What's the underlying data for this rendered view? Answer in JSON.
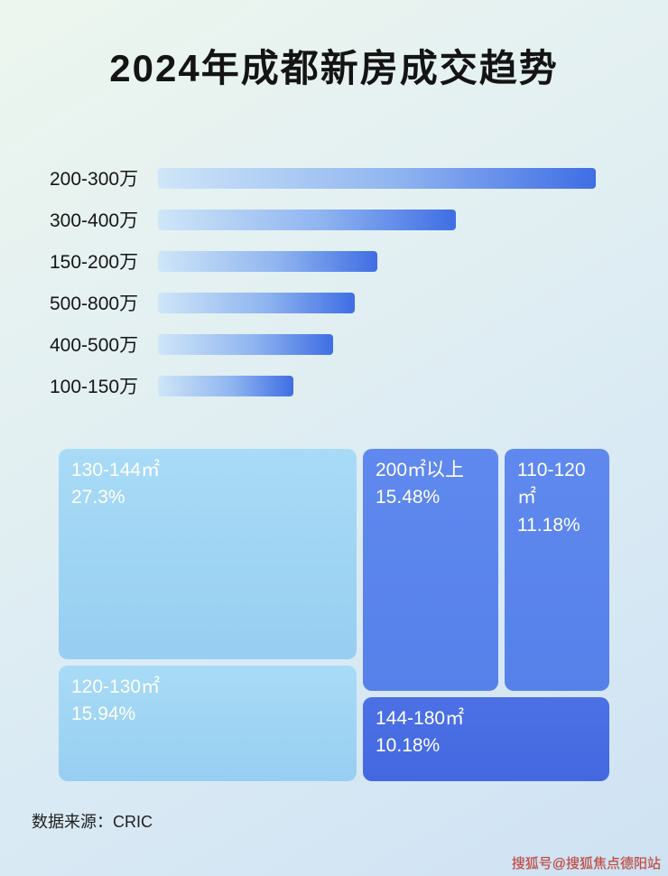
{
  "title": "2024年成都新房成交趋势",
  "footer": {
    "source": "数据来源：CRIC"
  },
  "watermark": "搜狐号@搜狐焦点德阳站",
  "chart_data": [
    {
      "type": "bar",
      "orientation": "horizontal",
      "title": "2024年成都新房成交趋势",
      "categories": [
        "200-300万",
        "300-400万",
        "150-200万",
        "500-800万",
        "400-500万",
        "100-150万"
      ],
      "values": [
        100,
        68,
        50,
        45,
        40,
        31
      ],
      "value_unit": "relative bar length (% of longest bar)",
      "note": "Bars carry no numeric labels in the image; values estimated from pixel lengths.",
      "xlabel": "",
      "ylabel": "",
      "grid": false,
      "legend": false,
      "bar_gradient": [
        "#cfe6f8",
        "#3f6ee4"
      ]
    },
    {
      "type": "treemap",
      "items": [
        {
          "label": "130-144㎡",
          "value_pct": 27.3,
          "value_label": "27.3%",
          "color": "#9fd4f3"
        },
        {
          "label": "120-130㎡",
          "value_pct": 15.94,
          "value_label": "15.94%",
          "color": "#9fd4f3"
        },
        {
          "label": "200㎡以上",
          "value_pct": 15.48,
          "value_label": "15.48%",
          "color": "#5b85ec"
        },
        {
          "label": "110-120㎡",
          "value_pct": 11.18,
          "value_label": "11.18%",
          "color": "#5b85ec"
        },
        {
          "label": "144-180㎡",
          "value_pct": 10.18,
          "value_label": "10.18%",
          "color": "#4a6de2"
        }
      ],
      "legend": false
    }
  ]
}
